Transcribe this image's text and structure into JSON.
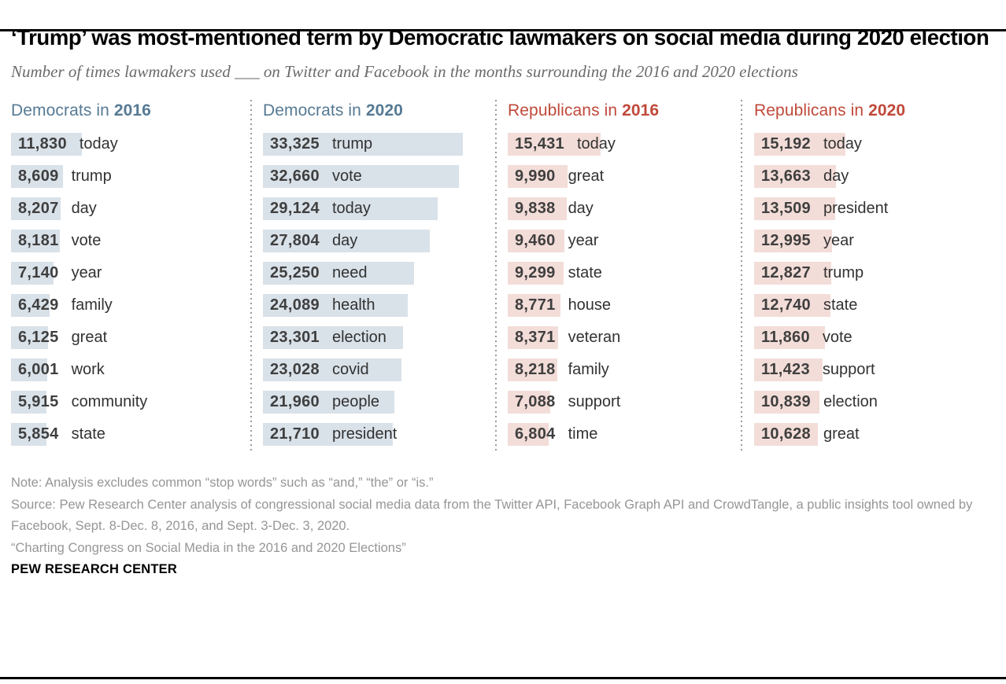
{
  "title": "‘Trump’ was most-mentioned term by Democratic lawmakers on social media during 2020 election",
  "subtitle": "Number of times lawmakers used ___ on Twitter and Facebook in the months surrounding the 2016 and 2020 elections",
  "colors": {
    "dem_header": "#567a94",
    "rep_header": "#c0493a",
    "dem_bar": "#d9e1e9",
    "rep_bar": "#f3ddd8",
    "number_text": "#3f3f3f",
    "term_text": "#323232",
    "note_text": "#969696"
  },
  "chart_data": {
    "type": "bar",
    "orientation": "horizontal",
    "value_label": "number of mentions",
    "max_value": 33325,
    "legend_position": "none",
    "grid": false,
    "groups": [
      {
        "label_prefix": "Democrats in",
        "year": "2016",
        "party": "dem",
        "items": [
          {
            "term": "today",
            "value": 11830
          },
          {
            "term": "trump",
            "value": 8609
          },
          {
            "term": "day",
            "value": 8207
          },
          {
            "term": "vote",
            "value": 8181
          },
          {
            "term": "year",
            "value": 7140
          },
          {
            "term": "family",
            "value": 6429
          },
          {
            "term": "great",
            "value": 6125
          },
          {
            "term": "work",
            "value": 6001
          },
          {
            "term": "community",
            "value": 5915
          },
          {
            "term": "state",
            "value": 5854
          }
        ]
      },
      {
        "label_prefix": "Democrats in",
        "year": "2020",
        "party": "dem",
        "items": [
          {
            "term": "trump",
            "value": 33325
          },
          {
            "term": "vote",
            "value": 32660
          },
          {
            "term": "today",
            "value": 29124
          },
          {
            "term": "day",
            "value": 27804
          },
          {
            "term": "need",
            "value": 25250
          },
          {
            "term": "health",
            "value": 24089
          },
          {
            "term": "election",
            "value": 23301
          },
          {
            "term": "covid",
            "value": 23028
          },
          {
            "term": "people",
            "value": 21960
          },
          {
            "term": "president",
            "value": 21710
          }
        ]
      },
      {
        "label_prefix": "Republicans in",
        "year": "2016",
        "party": "rep",
        "items": [
          {
            "term": "today",
            "value": 15431
          },
          {
            "term": "great",
            "value": 9990
          },
          {
            "term": "day",
            "value": 9838
          },
          {
            "term": "year",
            "value": 9460
          },
          {
            "term": "state",
            "value": 9299
          },
          {
            "term": "house",
            "value": 8771
          },
          {
            "term": "veteran",
            "value": 8371
          },
          {
            "term": "family",
            "value": 8218
          },
          {
            "term": "support",
            "value": 7088
          },
          {
            "term": "time",
            "value": 6804
          }
        ]
      },
      {
        "label_prefix": "Republicans in",
        "year": "2020",
        "party": "rep",
        "items": [
          {
            "term": "today",
            "value": 15192
          },
          {
            "term": "day",
            "value": 13663
          },
          {
            "term": "president",
            "value": 13509
          },
          {
            "term": "year",
            "value": 12995
          },
          {
            "term": "trump",
            "value": 12827
          },
          {
            "term": "state",
            "value": 12740
          },
          {
            "term": "vote",
            "value": 11860
          },
          {
            "term": "support",
            "value": 11423
          },
          {
            "term": "election",
            "value": 10839
          },
          {
            "term": "great",
            "value": 10628
          }
        ]
      }
    ]
  },
  "footer": {
    "note": "Note: Analysis excludes common “stop words” such as “and,” “the” or “is.”",
    "source": "Source: Pew Research Center analysis of congressional social media data from the Twitter API, Facebook Graph API and CrowdTangle, a public insights tool owned by Facebook, Sept. 8-Dec. 8, 2016, and Sept. 3-Dec. 3, 2020.",
    "citation": "“Charting Congress on Social Media in the 2016 and 2020 Elections”",
    "brand": "PEW RESEARCH CENTER"
  }
}
